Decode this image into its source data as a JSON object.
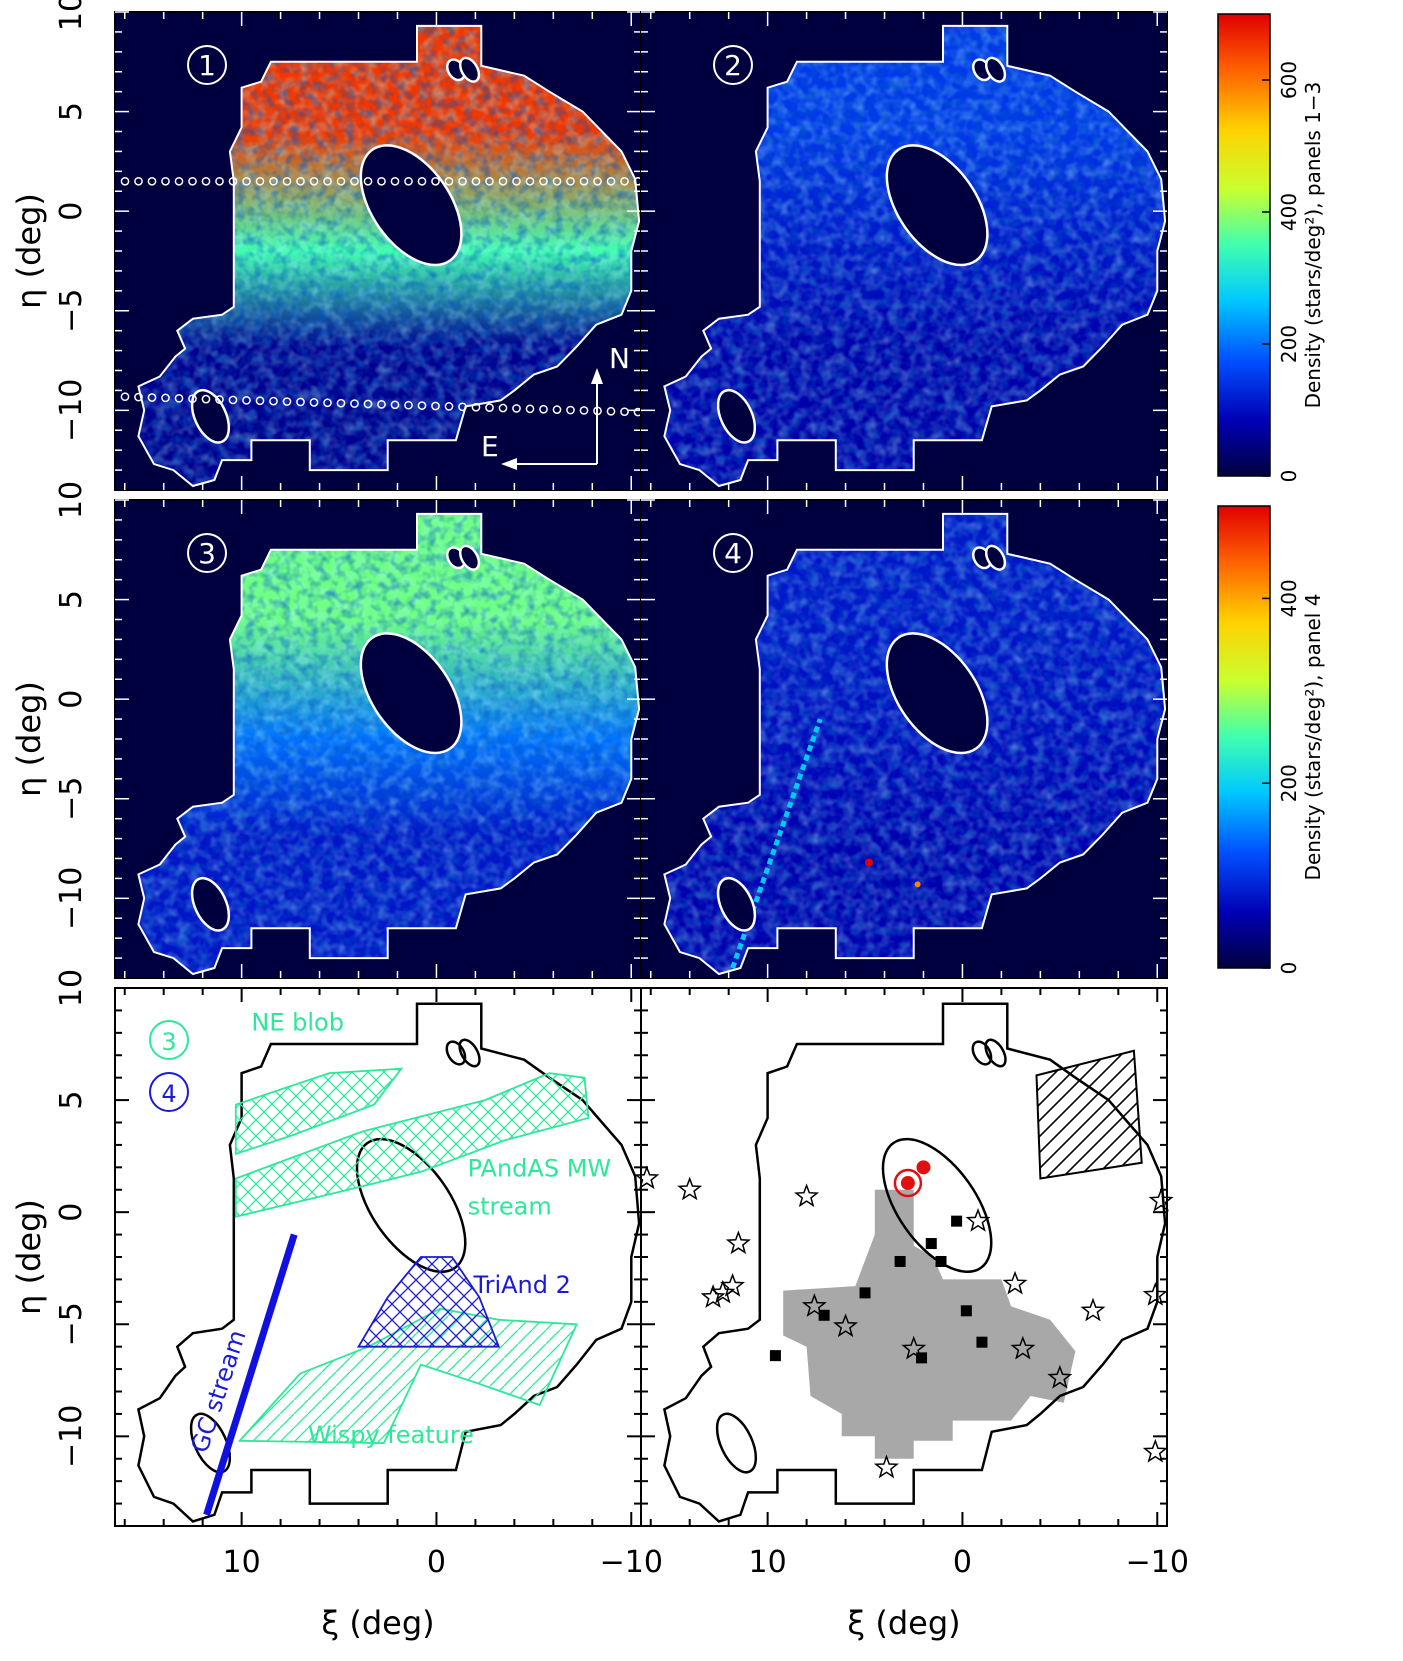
{
  "figure": {
    "colors": {
      "background": "#00003f",
      "footprint_outline": "#ffffff",
      "bottom_outline": "#000000",
      "green_feature": "#2ee89a",
      "blue_feature": "#1a1ad8",
      "gc_stream_line": "#1010e0",
      "grey_region": "#a8a8a8",
      "red_marker": "#e01010"
    },
    "colormap": [
      "#00003f",
      "#0000b4",
      "#0050ff",
      "#00c8ff",
      "#40ffb0",
      "#c8ff30",
      "#ffd200",
      "#ff6000",
      "#e00000"
    ]
  },
  "chart_data": [
    {
      "type": "heatmap",
      "panel": "1",
      "panel_label": "1",
      "xlim": [
        16.5,
        -10.5
      ],
      "ylim": [
        -14,
        10
      ],
      "density_profile": {
        "north": 650,
        "middle": 350,
        "south": 60
      },
      "dotted_lines_eta": [
        1.5,
        -9.3
      ],
      "compass": {
        "north": "N",
        "east": "E"
      }
    },
    {
      "type": "heatmap",
      "panel": "2",
      "panel_label": "2",
      "xlim": [
        16.5,
        -10.5
      ],
      "ylim": [
        -14,
        10
      ],
      "density_profile": {
        "north": 150,
        "middle": 110,
        "south": 80
      }
    },
    {
      "type": "heatmap",
      "panel": "3",
      "panel_label": "3",
      "xlim": [
        16.5,
        -10.5
      ],
      "ylim": [
        -14,
        10
      ],
      "density_profile": {
        "north": 380,
        "middle": 200,
        "south": 110
      }
    },
    {
      "type": "heatmap",
      "panel": "4",
      "panel_label": "4",
      "xlim": [
        16.5,
        -10.5
      ],
      "ylim": [
        -14,
        10
      ],
      "density_profile": {
        "north": 80,
        "middle": 70,
        "south": 60
      },
      "gc_stream": {
        "xi": [
          11.8,
          7.3
        ],
        "eta": [
          -13.5,
          -1
        ]
      }
    },
    {
      "type": "diagram",
      "panel": "5",
      "legend": [
        "3",
        "4"
      ],
      "features": [
        {
          "name": "NE blob",
          "hatch": "cross"
        },
        {
          "name": "PAndAS MW stream",
          "label_lines": [
            "PAndAS MW",
            "stream"
          ],
          "hatch": "cross"
        },
        {
          "name": "TriAnd 2",
          "hatch": "cross"
        },
        {
          "name": "Wispy feature",
          "hatch": "diagonal"
        },
        {
          "name": "GC stream",
          "xi": [
            11.8,
            7.3
          ],
          "eta": [
            -13.5,
            -1
          ]
        }
      ]
    },
    {
      "type": "scatter",
      "panel": "6",
      "stars": [
        [
          16.2,
          1.5
        ],
        [
          14.0,
          1.0
        ],
        [
          12.8,
          -3.8
        ],
        [
          12.3,
          -3.6
        ],
        [
          11.8,
          -3.3
        ],
        [
          11.5,
          -1.4
        ],
        [
          8.0,
          0.7
        ],
        [
          7.6,
          -4.2
        ],
        [
          6.0,
          -5.1
        ],
        [
          2.5,
          -6.1
        ],
        [
          -0.8,
          -0.4
        ],
        [
          -2.7,
          -3.2
        ],
        [
          -3.1,
          -6.1
        ],
        [
          -5.0,
          -7.4
        ],
        [
          -6.7,
          -4.4
        ],
        [
          -9.9,
          -3.7
        ],
        [
          -10.2,
          0.5
        ],
        [
          -9.9,
          -10.7
        ],
        [
          3.9,
          -11.4
        ]
      ],
      "squares": [
        [
          3.2,
          -2.2
        ],
        [
          1.6,
          -1.4
        ],
        [
          1.1,
          -2.2
        ],
        [
          0.3,
          -0.4
        ],
        [
          5.0,
          -3.6
        ],
        [
          7.1,
          -4.6
        ],
        [
          9.6,
          -6.4
        ],
        [
          2.1,
          -6.5
        ],
        [
          -0.2,
          -4.4
        ],
        [
          -1.0,
          -5.8
        ]
      ],
      "red_dot": [
        2.0,
        2.0
      ],
      "red_dot_circled": [
        2.8,
        1.3
      ],
      "hatched_box": "diagonal"
    }
  ],
  "axes": {
    "x_ticks": [
      "10",
      "0",
      "−10"
    ],
    "y_ticks": [
      "10",
      "5",
      "0",
      "−5",
      "−10"
    ],
    "xlabel": "ξ (deg)",
    "ylabel": "η (deg)"
  },
  "colorbars": [
    {
      "label": "Density (stars/deg²), panels 1−3",
      "ticks": [
        "0",
        "200",
        "400",
        "600"
      ],
      "range": [
        0,
        700
      ]
    },
    {
      "label": "Density (stars/deg²), panel 4",
      "ticks": [
        "0",
        "200",
        "400"
      ],
      "range": [
        0,
        500
      ]
    }
  ]
}
